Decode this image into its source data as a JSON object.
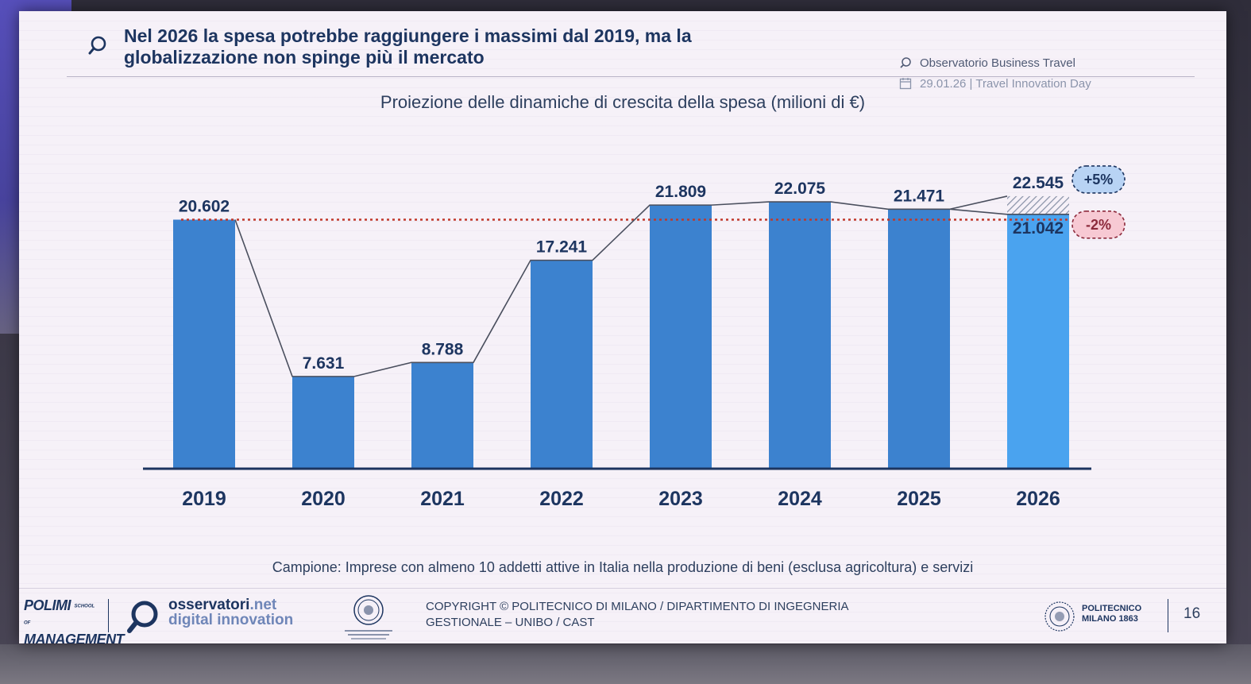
{
  "header": {
    "title_line1": "Nel 2026 la spesa potrebbe raggiungere i massimi dal 2019, ma la",
    "title_line2": "globalizzazione non spinge più il mercato",
    "source": "Observatorio Business Travel",
    "date": "29.01.26 | Travel Innovation Day"
  },
  "chart_data": {
    "type": "bar",
    "title": "Proiezione delle dinamiche di crescita della spesa (milioni di €)",
    "categories": [
      "2019",
      "2020",
      "2021",
      "2022",
      "2023",
      "2024",
      "2025",
      "2026"
    ],
    "values": [
      20602,
      7631,
      8788,
      17241,
      21809,
      22075,
      21471,
      21042
    ],
    "value_labels": [
      "20.602",
      "7.631",
      "8.788",
      "17.241",
      "21.809",
      "22.075",
      "21.471",
      "21.042"
    ],
    "projection": {
      "category": "2026",
      "high_value": 22545,
      "high_label": "22.545",
      "high_change": "+5%",
      "low_value": 21042,
      "low_label": "21.042",
      "low_change": "-2%"
    },
    "reference_line": {
      "value": 20602,
      "style": "dotted"
    },
    "ylim": [
      0,
      23000
    ],
    "xlabel": "",
    "ylabel": "",
    "colors": {
      "bar": "#3c82cf",
      "projected_bar": "#4aa3ef",
      "text": "#1d3560",
      "reference": "#c0392b",
      "high_pill": "#b8d3f4",
      "low_pill": "#f7c9d3"
    }
  },
  "footnote": "Campione: Imprese con almeno 10 addetti attive in Italia nella produzione di beni (esclusa agricoltura) e servizi",
  "footer": {
    "logo_polimi_line1": "POLIMI",
    "logo_polimi_small1": "SCHOOL OF",
    "logo_polimi_line2": "MANAGEMENT",
    "logo_osservatori_name": "osservatori",
    "logo_osservatori_tld": ".net",
    "logo_osservatori_sub": "digital innovation",
    "copyright_line1": "COPYRIGHT © POLITECNICO DI MILANO / DIPARTIMENTO DI INGEGNERIA",
    "copyright_line2": "GESTIONALE – UNIBO / CAST",
    "logo_politecnico_line1": "POLITECNICO",
    "logo_politecnico_line2": "MILANO 1863",
    "page_number": "16"
  }
}
